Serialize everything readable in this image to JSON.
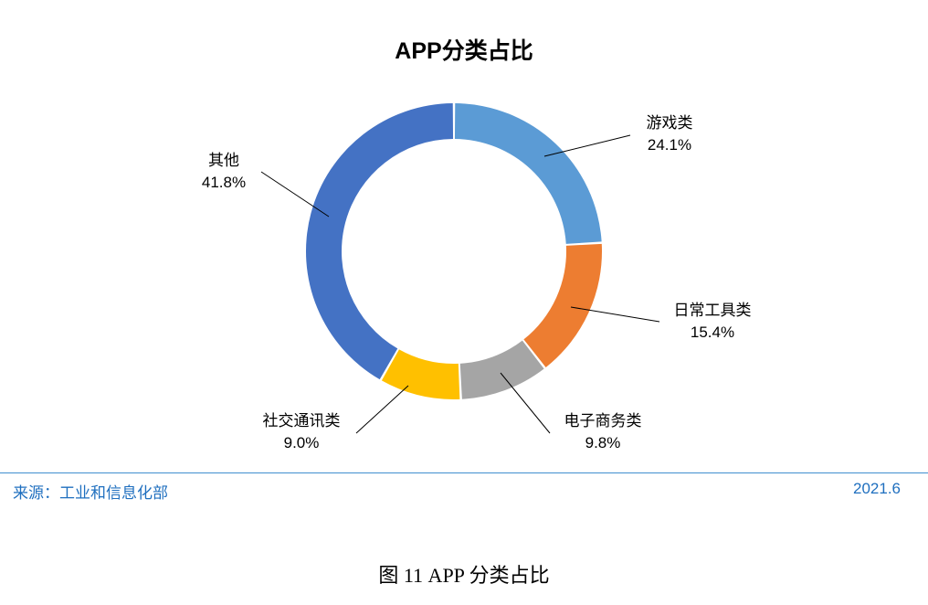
{
  "chart_data": {
    "type": "pie",
    "donut": true,
    "title": "APP分类占比",
    "categories": [
      "游戏类",
      "日常工具类",
      "电子商务类",
      "社交通讯类",
      "其他"
    ],
    "values": [
      24.1,
      15.4,
      9.8,
      9.0,
      41.8
    ],
    "value_labels": [
      "24.1%",
      "15.4%",
      "9.8%",
      "9.0%",
      "41.8%"
    ],
    "colors": [
      "#5b9bd5",
      "#ed7d31",
      "#a5a5a5",
      "#ffc000",
      "#4472c4"
    ],
    "legend": "none"
  },
  "footer": {
    "source": "来源：工业和信息化部",
    "date": "2021.6"
  },
  "caption": "图  11    APP 分类占比"
}
